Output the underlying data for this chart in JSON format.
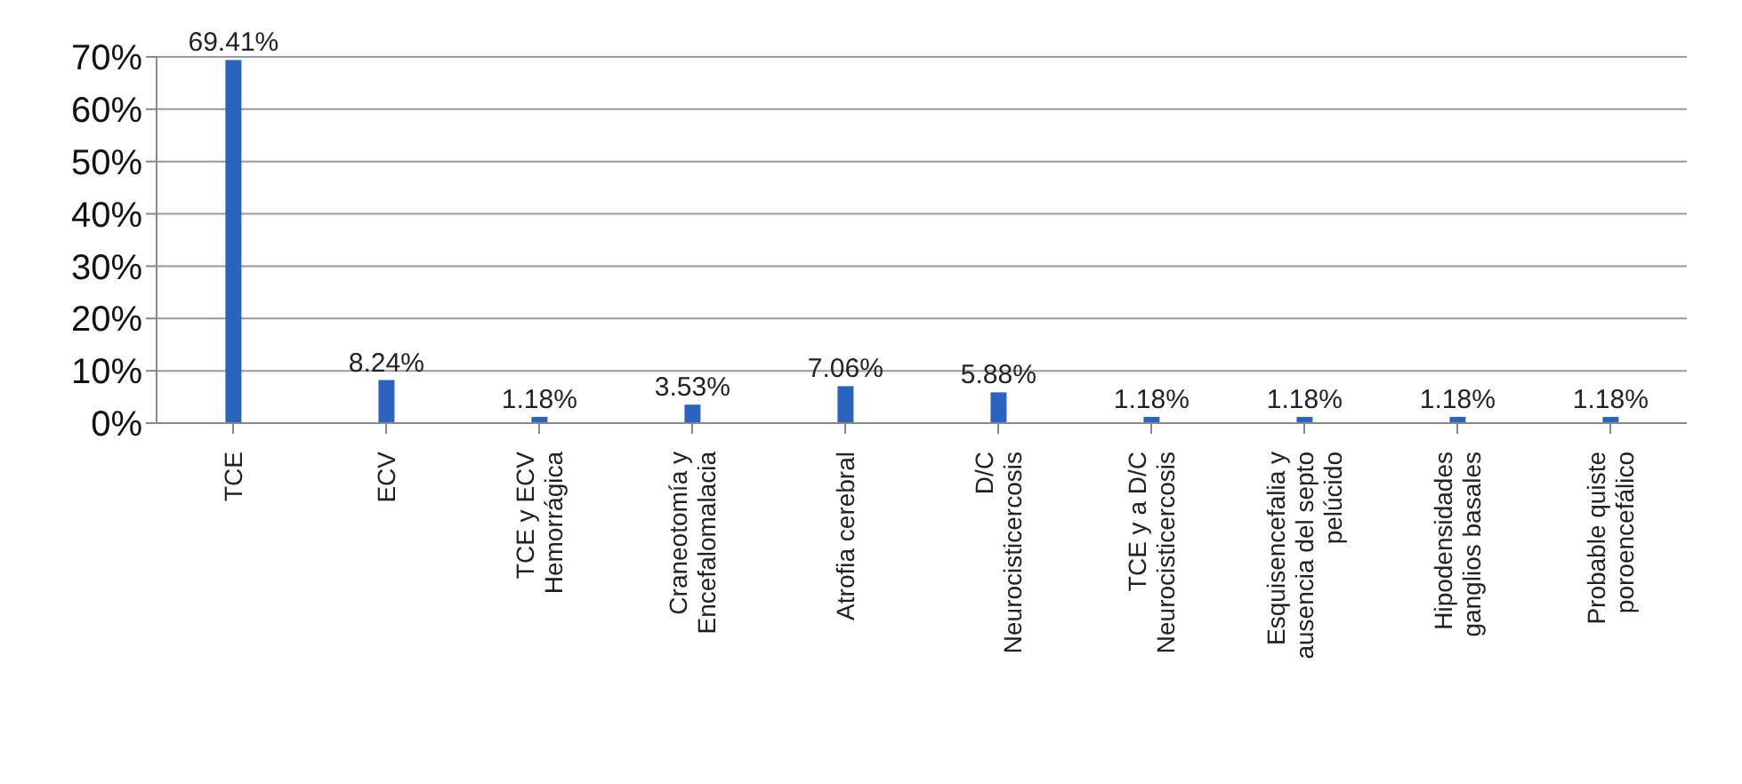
{
  "chart_data": {
    "type": "bar",
    "categories": [
      "TCE",
      "ECV",
      "TCE y ECV Hemorrágica",
      "Craneotomía y Encefalomalacia",
      "Atrofia cerebral",
      "D/C Neurocisticercosis",
      "TCE y a D/C Neurocisticercosis",
      "Esquisencefalia y ausencia del septo pelúcido",
      "Hipodensidades ganglios basales",
      "Probable quiste poroencefálico"
    ],
    "values": [
      69.41,
      8.24,
      1.18,
      3.53,
      7.06,
      5.88,
      1.18,
      1.18,
      1.18,
      1.18
    ],
    "value_labels": [
      "69.41%",
      "8.24%",
      "1.18%",
      "3.53%",
      "7.06%",
      "5.88%",
      "1.18%",
      "1.18%",
      "1.18%",
      "1.18%"
    ],
    "color": "#2a64bf",
    "ylim": [
      0,
      70
    ],
    "yticks": [
      {
        "value": 0,
        "label": "0%"
      },
      {
        "value": 10,
        "label": "10%"
      },
      {
        "value": 20,
        "label": "20%"
      },
      {
        "value": 30,
        "label": "30%"
      },
      {
        "value": 40,
        "label": "40%"
      },
      {
        "value": 50,
        "label": "50%"
      },
      {
        "value": 60,
        "label": "60%"
      },
      {
        "value": 70,
        "label": "70%"
      }
    ],
    "grid": "y"
  }
}
